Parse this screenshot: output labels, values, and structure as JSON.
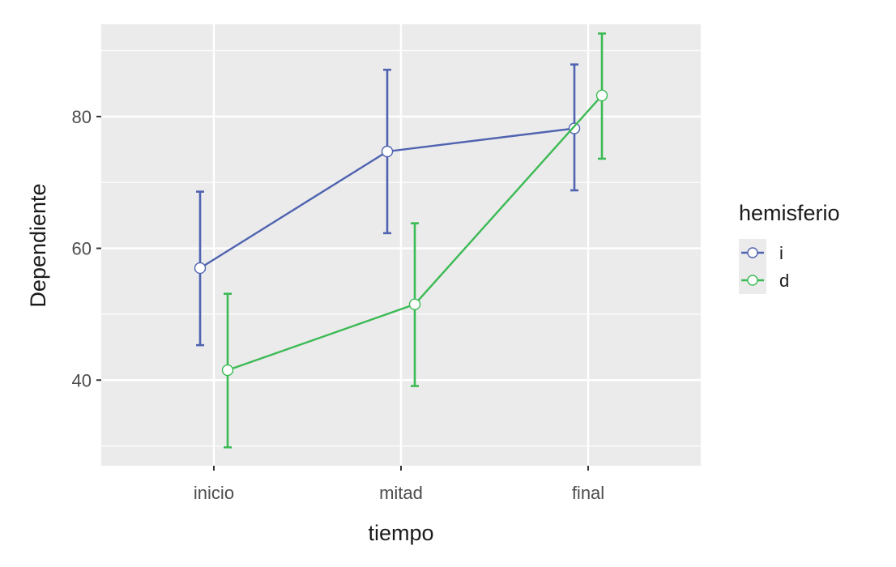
{
  "chart_data": {
    "type": "line",
    "xlabel": "tiempo",
    "ylabel": "Dependiente",
    "categories": [
      "inicio",
      "mitad",
      "final"
    ],
    "ylim": [
      27,
      94
    ],
    "yticks": [
      40,
      60,
      80
    ],
    "grid": true,
    "legend": {
      "title": "hemisferio",
      "position": "right"
    },
    "series": [
      {
        "name": "i",
        "color": "#4f63b0",
        "values": [
          57,
          74.7,
          78.2
        ],
        "err_low": [
          45.3,
          62.3,
          68.8
        ],
        "err_high": [
          68.6,
          87.1,
          87.9
        ]
      },
      {
        "name": "d",
        "color": "#3cba54",
        "values": [
          41.5,
          51.5,
          83.2
        ],
        "err_low": [
          29.8,
          39.1,
          73.6
        ],
        "err_high": [
          53.1,
          63.8,
          92.6
        ]
      }
    ]
  }
}
